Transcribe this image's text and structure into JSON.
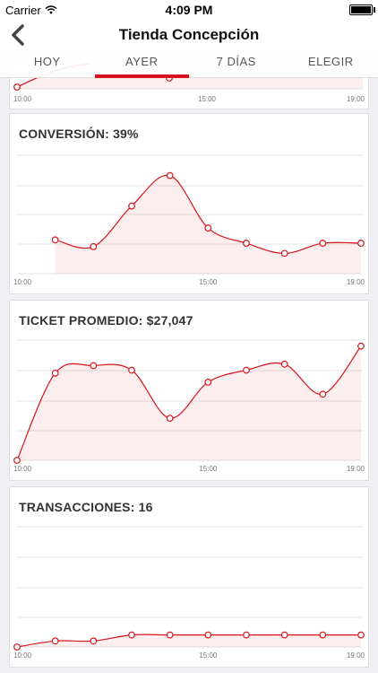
{
  "status": {
    "carrier": "Carrier",
    "time": "4:09 PM"
  },
  "nav": {
    "title": "Tienda Concepción"
  },
  "tabs": [
    {
      "label": "HOY"
    },
    {
      "label": "AYER"
    },
    {
      "label": "7 DÍAS"
    },
    {
      "label": "ELEGIR"
    }
  ],
  "accent": "#d7141c",
  "chart_data": [
    {
      "type": "line",
      "title": "",
      "x_ticks": [
        "10:00",
        "15:00",
        "19:00"
      ],
      "x": [],
      "values": []
    },
    {
      "type": "area",
      "title": "CONVERSIÓN: 39%",
      "x_ticks": [
        "10:00",
        "15:00",
        "19:00"
      ],
      "x": [
        "11:00",
        "12:00",
        "13:00",
        "14:00",
        "15:00",
        "16:00",
        "17:00",
        "18:00",
        "19:00"
      ],
      "values": [
        40,
        36,
        60,
        78,
        47,
        38,
        32,
        38,
        38
      ],
      "ylim": [
        20,
        90
      ]
    },
    {
      "type": "area",
      "title": "TICKET PROMEDIO: $27,047",
      "x_ticks": [
        "10:00",
        "15:00",
        "19:00"
      ],
      "x": [
        "10:00",
        "11:00",
        "12:00",
        "13:00",
        "14:00",
        "15:00",
        "16:00",
        "17:00",
        "18:00",
        "19:00"
      ],
      "values": [
        0,
        29000,
        31500,
        30000,
        14000,
        26000,
        30000,
        32000,
        22000,
        38000
      ],
      "ylim": [
        0,
        40000
      ]
    },
    {
      "type": "area",
      "title": "TRANSACCIONES: 16",
      "x_ticks": [
        "10:00",
        "15:00",
        "19:00"
      ],
      "x": [
        "10:00",
        "11:00",
        "12:00",
        "13:00",
        "14:00",
        "15:00",
        "16:00",
        "17:00",
        "18:00",
        "19:00"
      ],
      "values": [
        0,
        4,
        4,
        8,
        8,
        8,
        8,
        8,
        8,
        8
      ],
      "ylim": [
        0,
        80
      ]
    }
  ]
}
